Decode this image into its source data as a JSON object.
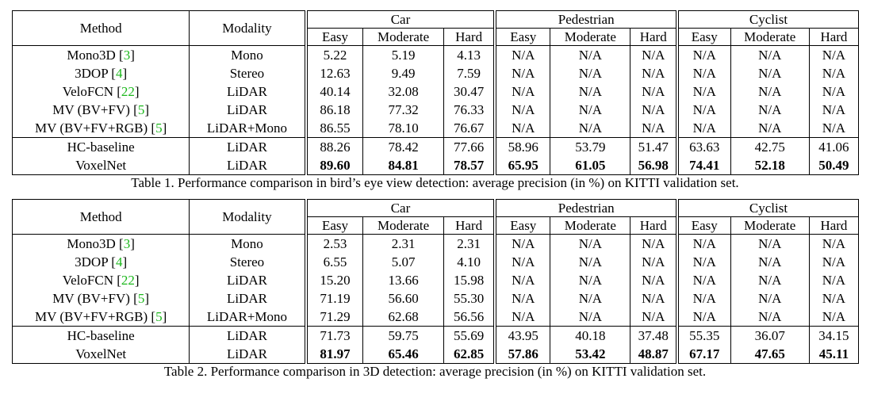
{
  "groups": [
    "Car",
    "Pedestrian",
    "Cyclist"
  ],
  "subcols": [
    "Easy",
    "Moderate",
    "Hard"
  ],
  "col_method": "Method",
  "col_modality": "Modality",
  "tables": [
    {
      "caption": "Table 1. Performance comparison in bird’s eye view detection: average precision (in %) on KITTI validation set.",
      "rows": [
        {
          "method": "Mono3D",
          "ref": "3",
          "modality": "Mono",
          "values": [
            "5.22",
            "5.19",
            "4.13",
            "N/A",
            "N/A",
            "N/A",
            "N/A",
            "N/A",
            "N/A"
          ],
          "bold": [
            false,
            false,
            false,
            false,
            false,
            false,
            false,
            false,
            false
          ]
        },
        {
          "method": "3DOP",
          "ref": "4",
          "modality": "Stereo",
          "values": [
            "12.63",
            "9.49",
            "7.59",
            "N/A",
            "N/A",
            "N/A",
            "N/A",
            "N/A",
            "N/A"
          ],
          "bold": [
            false,
            false,
            false,
            false,
            false,
            false,
            false,
            false,
            false
          ]
        },
        {
          "method": "VeloFCN",
          "ref": "22",
          "modality": "LiDAR",
          "values": [
            "40.14",
            "32.08",
            "30.47",
            "N/A",
            "N/A",
            "N/A",
            "N/A",
            "N/A",
            "N/A"
          ],
          "bold": [
            false,
            false,
            false,
            false,
            false,
            false,
            false,
            false,
            false
          ]
        },
        {
          "method": "MV (BV+FV)",
          "ref": "5",
          "modality": "LiDAR",
          "values": [
            "86.18",
            "77.32",
            "76.33",
            "N/A",
            "N/A",
            "N/A",
            "N/A",
            "N/A",
            "N/A"
          ],
          "bold": [
            false,
            false,
            false,
            false,
            false,
            false,
            false,
            false,
            false
          ]
        },
        {
          "method": "MV (BV+FV+RGB)",
          "ref": "5",
          "modality": "LiDAR+Mono",
          "values": [
            "86.55",
            "78.10",
            "76.67",
            "N/A",
            "N/A",
            "N/A",
            "N/A",
            "N/A",
            "N/A"
          ],
          "bold": [
            false,
            false,
            false,
            false,
            false,
            false,
            false,
            false,
            false
          ]
        },
        {
          "method": "HC-baseline",
          "ref": "",
          "modality": "LiDAR",
          "values": [
            "88.26",
            "78.42",
            "77.66",
            "58.96",
            "53.79",
            "51.47",
            "63.63",
            "42.75",
            "41.06"
          ],
          "bold": [
            false,
            false,
            false,
            false,
            false,
            false,
            false,
            false,
            false
          ],
          "sep": true
        },
        {
          "method": "VoxelNet",
          "ref": "",
          "modality": "LiDAR",
          "values": [
            "89.60",
            "84.81",
            "78.57",
            "65.95",
            "61.05",
            "56.98",
            "74.41",
            "52.18",
            "50.49"
          ],
          "bold": [
            true,
            true,
            true,
            true,
            true,
            true,
            true,
            true,
            true
          ]
        }
      ]
    },
    {
      "caption": "Table 2. Performance comparison in 3D detection: average precision (in %) on KITTI validation set.",
      "rows": [
        {
          "method": "Mono3D",
          "ref": "3",
          "modality": "Mono",
          "values": [
            "2.53",
            "2.31",
            "2.31",
            "N/A",
            "N/A",
            "N/A",
            "N/A",
            "N/A",
            "N/A"
          ],
          "bold": [
            false,
            false,
            false,
            false,
            false,
            false,
            false,
            false,
            false
          ]
        },
        {
          "method": "3DOP",
          "ref": "4",
          "modality": "Stereo",
          "values": [
            "6.55",
            "5.07",
            "4.10",
            "N/A",
            "N/A",
            "N/A",
            "N/A",
            "N/A",
            "N/A"
          ],
          "bold": [
            false,
            false,
            false,
            false,
            false,
            false,
            false,
            false,
            false
          ]
        },
        {
          "method": "VeloFCN",
          "ref": "22",
          "modality": "LiDAR",
          "values": [
            "15.20",
            "13.66",
            "15.98",
            "N/A",
            "N/A",
            "N/A",
            "N/A",
            "N/A",
            "N/A"
          ],
          "bold": [
            false,
            false,
            false,
            false,
            false,
            false,
            false,
            false,
            false
          ]
        },
        {
          "method": "MV (BV+FV)",
          "ref": "5",
          "modality": "LiDAR",
          "values": [
            "71.19",
            "56.60",
            "55.30",
            "N/A",
            "N/A",
            "N/A",
            "N/A",
            "N/A",
            "N/A"
          ],
          "bold": [
            false,
            false,
            false,
            false,
            false,
            false,
            false,
            false,
            false
          ]
        },
        {
          "method": "MV (BV+FV+RGB)",
          "ref": "5",
          "modality": "LiDAR+Mono",
          "values": [
            "71.29",
            "62.68",
            "56.56",
            "N/A",
            "N/A",
            "N/A",
            "N/A",
            "N/A",
            "N/A"
          ],
          "bold": [
            false,
            false,
            false,
            false,
            false,
            false,
            false,
            false,
            false
          ]
        },
        {
          "method": "HC-baseline",
          "ref": "",
          "modality": "LiDAR",
          "values": [
            "71.73",
            "59.75",
            "55.69",
            "43.95",
            "40.18",
            "37.48",
            "55.35",
            "36.07",
            "34.15"
          ],
          "bold": [
            false,
            false,
            false,
            false,
            false,
            false,
            false,
            false,
            false
          ],
          "sep": true
        },
        {
          "method": "VoxelNet",
          "ref": "",
          "modality": "LiDAR",
          "values": [
            "81.97",
            "65.46",
            "62.85",
            "57.86",
            "53.42",
            "48.87",
            "67.17",
            "47.65",
            "45.11"
          ],
          "bold": [
            true,
            true,
            true,
            true,
            true,
            true,
            true,
            true,
            true
          ]
        }
      ]
    }
  ]
}
